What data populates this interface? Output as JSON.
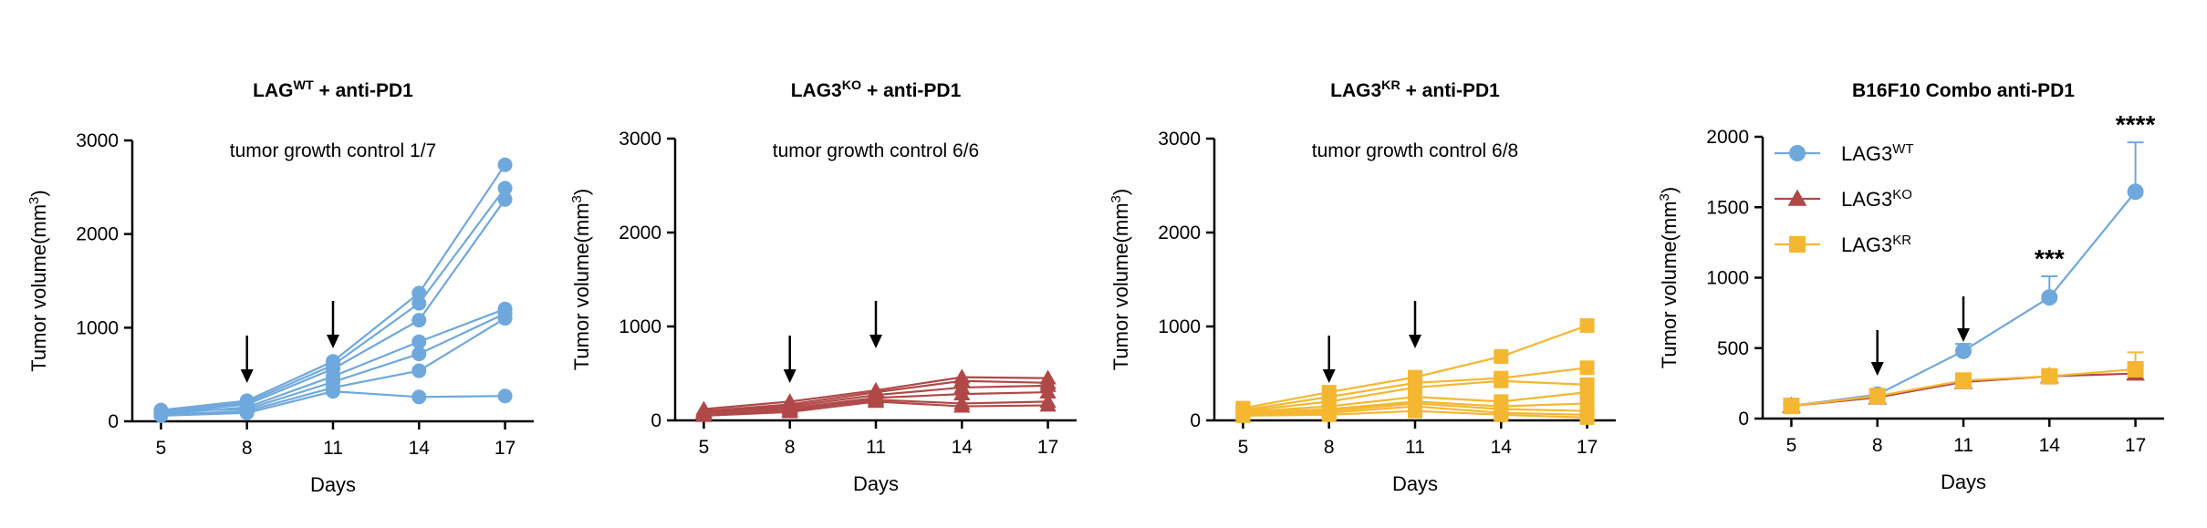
{
  "colors": {
    "wt": "#6fa8dc",
    "ko": "#b04848",
    "kr": "#f5b731"
  },
  "chart_data": [
    {
      "type": "line",
      "title_base": "LAG",
      "title_sup": "WT",
      "title_suffix": " + anti-PD1",
      "annotation": "tumor growth control 1/7",
      "xlabel": "Days",
      "ylabel": "Tumor volume(mm",
      "ylabel_sup": "3",
      "ylabel_end": ")",
      "x": [
        5,
        8,
        11,
        14,
        17
      ],
      "xticks": [
        "5",
        "8",
        "11",
        "14",
        "17"
      ],
      "yticks": [
        0,
        1000,
        2000,
        3000
      ],
      "ylim": [
        0,
        3000
      ],
      "marker": "circle",
      "color_key": "wt",
      "arrows_at": [
        8,
        11
      ],
      "series": [
        {
          "values": [
            120,
            220,
            640,
            1370,
            2740
          ]
        },
        {
          "values": [
            100,
            200,
            600,
            1260,
            2490
          ]
        },
        {
          "values": [
            90,
            180,
            560,
            1080,
            2370
          ]
        },
        {
          "values": [
            80,
            150,
            480,
            850,
            1200
          ]
        },
        {
          "values": [
            110,
            130,
            420,
            720,
            1150
          ]
        },
        {
          "values": [
            70,
            110,
            360,
            540,
            1100
          ]
        },
        {
          "values": [
            60,
            90,
            320,
            260,
            270
          ]
        }
      ]
    },
    {
      "type": "line",
      "title_base": "LAG3",
      "title_sup": "KO",
      "title_suffix": " + anti-PD1",
      "annotation": "tumor growth control 6/6",
      "xlabel": "Days",
      "ylabel": "Tumor volume(mm",
      "ylabel_sup": "3",
      "ylabel_end": ")",
      "x": [
        5,
        8,
        11,
        14,
        17
      ],
      "xticks": [
        "5",
        "8",
        "11",
        "14",
        "17"
      ],
      "yticks": [
        0,
        1000,
        2000,
        3000
      ],
      "ylim": [
        0,
        3000
      ],
      "marker": "triangle",
      "color_key": "ko",
      "arrows_at": [
        8,
        11
      ],
      "series": [
        {
          "values": [
            120,
            200,
            320,
            460,
            450
          ]
        },
        {
          "values": [
            100,
            170,
            300,
            420,
            400
          ]
        },
        {
          "values": [
            90,
            150,
            270,
            350,
            370
          ]
        },
        {
          "values": [
            80,
            130,
            240,
            280,
            300
          ]
        },
        {
          "values": [
            60,
            110,
            220,
            180,
            200
          ]
        },
        {
          "values": [
            50,
            90,
            200,
            150,
            160
          ]
        }
      ]
    },
    {
      "type": "line",
      "title_base": "LAG3",
      "title_sup": "KR",
      "title_suffix": " + anti-PD1",
      "annotation": "tumor growth control 6/8",
      "xlabel": "Days",
      "ylabel": "Tumor volume(mm",
      "ylabel_sup": "3",
      "ylabel_end": ")",
      "x": [
        5,
        8,
        11,
        14,
        17
      ],
      "xticks": [
        "5",
        "8",
        "11",
        "14",
        "17"
      ],
      "yticks": [
        0,
        1000,
        2000,
        3000
      ],
      "ylim": [
        0,
        3000
      ],
      "marker": "square",
      "color_key": "kr",
      "arrows_at": [
        8,
        11
      ],
      "series": [
        {
          "values": [
            130,
            300,
            460,
            680,
            1010
          ]
        },
        {
          "values": [
            110,
            250,
            400,
            450,
            560
          ]
        },
        {
          "values": [
            100,
            200,
            350,
            420,
            380
          ]
        },
        {
          "values": [
            90,
            150,
            250,
            200,
            300
          ]
        },
        {
          "values": [
            80,
            120,
            200,
            150,
            180
          ]
        },
        {
          "values": [
            70,
            100,
            180,
            120,
            100
          ]
        },
        {
          "values": [
            60,
            80,
            150,
            80,
            60
          ]
        },
        {
          "values": [
            50,
            60,
            100,
            60,
            30
          ]
        }
      ]
    },
    {
      "type": "line",
      "title": "B16F10 Combo anti-PD1",
      "xlabel": "Days",
      "ylabel": "Tumor volume(mm",
      "ylabel_sup": "3",
      "ylabel_end": ")",
      "x": [
        5,
        8,
        11,
        14,
        17
      ],
      "xticks": [
        "5",
        "8",
        "11",
        "14",
        "17"
      ],
      "yticks": [
        0,
        500,
        1000,
        1500,
        2000
      ],
      "ylim": [
        0,
        2000
      ],
      "arrows_at": [
        8,
        11
      ],
      "legend_position": "top-left",
      "significance": [
        {
          "x": 14,
          "label": "***"
        },
        {
          "x": 17,
          "label": "****"
        }
      ],
      "series": [
        {
          "name_base": "LAG3",
          "name_sup": "WT",
          "marker": "circle",
          "color_key": "wt",
          "values": [
            90,
            170,
            480,
            860,
            1610
          ],
          "errors": [
            20,
            30,
            50,
            150,
            350
          ]
        },
        {
          "name_base": "LAG3",
          "name_sup": "KO",
          "marker": "triangle",
          "color_key": "ko",
          "values": [
            90,
            150,
            260,
            300,
            320
          ],
          "errors": [
            10,
            20,
            30,
            40,
            40
          ]
        },
        {
          "name_base": "LAG3",
          "name_sup": "KR",
          "marker": "square",
          "color_key": "kr",
          "values": [
            90,
            160,
            270,
            300,
            350
          ],
          "errors": [
            10,
            20,
            30,
            40,
            120
          ]
        }
      ]
    }
  ]
}
